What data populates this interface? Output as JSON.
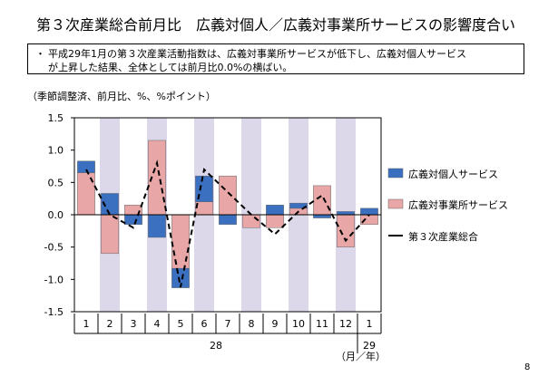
{
  "title": "第３次産業総合前月比　広義対個人／広義対事業所サービスの影響度合い",
  "summary": {
    "bullet": "・",
    "line1": "平成29年1月の第３次産業活動指数は、広義対事業所サービスが低下し、広義対個人サービス",
    "line2": "が上昇した結果、全体としては前月比0.0%の横ばい。"
  },
  "unit_label": "（季節調整済、前月比、%、%ポイント）",
  "page_number": "8",
  "colors": {
    "personal": "#3b6fbf",
    "business": "#e8a6a6",
    "shade": "#dcd8ea",
    "total": "#000000"
  },
  "chart_data": {
    "type": "bar",
    "stacked": true,
    "categories": [
      "1",
      "2",
      "3",
      "4",
      "5",
      "6",
      "7",
      "8",
      "9",
      "10",
      "11",
      "12",
      "1"
    ],
    "year_labels": [
      {
        "text": "28",
        "month_index": 6
      },
      {
        "text": "29",
        "month_index": 12
      }
    ],
    "axis_unit_label": "（月／年）",
    "shaded_months": [
      "2",
      "4",
      "6",
      "8",
      "10",
      "12"
    ],
    "ylim": [
      -1.5,
      1.5
    ],
    "yticks": [
      "1.5",
      "1.0",
      "0.5",
      "0.0",
      "-0.5",
      "-1.0",
      "-1.5"
    ],
    "series": [
      {
        "name": "広義対個人サービス",
        "kind": "bar",
        "values": [
          0.18,
          0.33,
          -0.15,
          -0.35,
          -0.3,
          0.4,
          -0.15,
          0.0,
          0.15,
          0.08,
          -0.05,
          0.05,
          0.1
        ]
      },
      {
        "name": "広義対事業所サービス",
        "kind": "bar",
        "values": [
          0.65,
          -0.6,
          0.15,
          1.15,
          -0.83,
          0.2,
          0.6,
          -0.2,
          -0.2,
          0.1,
          0.45,
          -0.5,
          -0.15
        ]
      },
      {
        "name": "第３次産業総合",
        "kind": "line",
        "dash": true,
        "values": [
          0.7,
          0.0,
          -0.2,
          0.8,
          -1.12,
          0.7,
          0.35,
          0.0,
          -0.3,
          0.05,
          0.3,
          -0.4,
          0.0
        ]
      }
    ],
    "grid": false,
    "legend_position": "right"
  }
}
